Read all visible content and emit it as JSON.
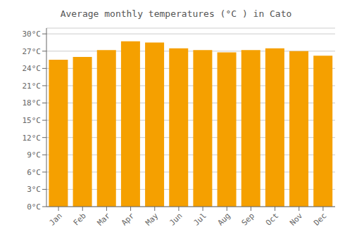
{
  "chart_data": {
    "type": "bar",
    "title": "Average monthly temperatures (°C ) in Cato",
    "categories": [
      "Jan",
      "Feb",
      "Mar",
      "Apr",
      "May",
      "Jun",
      "Jul",
      "Aug",
      "Sep",
      "Oct",
      "Nov",
      "Dec"
    ],
    "values": [
      25.5,
      26.0,
      27.2,
      28.7,
      28.5,
      27.5,
      27.2,
      26.8,
      27.2,
      27.5,
      27.0,
      26.2
    ],
    "color": "#F5A000",
    "ylim": [
      0,
      31
    ],
    "yticks": [
      {
        "value": 0,
        "label": "0°C"
      },
      {
        "value": 3,
        "label": "3°C"
      },
      {
        "value": 6,
        "label": "6°C"
      },
      {
        "value": 9,
        "label": "9°C"
      },
      {
        "value": 12,
        "label": "12°C"
      },
      {
        "value": 15,
        "label": "15°C"
      },
      {
        "value": 18,
        "label": "18°C"
      },
      {
        "value": 21,
        "label": "21°C"
      },
      {
        "value": 24,
        "label": "24°C"
      },
      {
        "value": 27,
        "label": "27°C"
      },
      {
        "value": 30,
        "label": "30°C"
      }
    ],
    "grid": true
  }
}
